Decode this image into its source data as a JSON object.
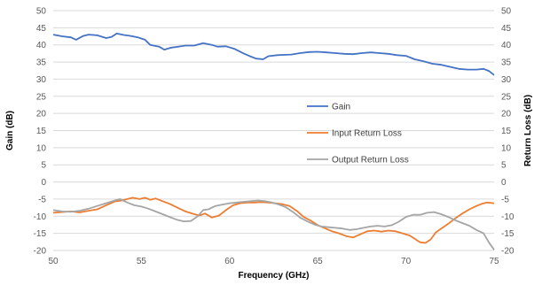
{
  "chart_data": {
    "type": "line",
    "title": "",
    "xlabel": "Frequency (GHz)",
    "ylabel": "Gain (dB)",
    "y2label": "Return Loss (dB)",
    "xlim": [
      50,
      75
    ],
    "ylim": [
      -20,
      50
    ],
    "y2lim": [
      -20,
      50
    ],
    "grid": "horizontal",
    "legend": "center-right",
    "x_ticks": [
      "50",
      "55",
      "60",
      "65",
      "70",
      "75"
    ],
    "y_ticks": [
      "50",
      "45",
      "40",
      "35",
      "30",
      "25",
      "20",
      "15",
      "10",
      "5",
      "0",
      "-5",
      "-10",
      "-15",
      "-20"
    ],
    "y2_ticks": [
      "50",
      "45",
      "40",
      "35",
      "30",
      "25",
      "20",
      "15",
      "10",
      "5",
      "0",
      "-5",
      "-10",
      "-15",
      "-20"
    ],
    "series": [
      {
        "name": "Gain",
        "color": "#4472C4",
        "axis": "left",
        "points": [
          [
            50,
            43.0
          ],
          [
            50.5,
            42.5
          ],
          [
            51,
            42.2
          ],
          [
            51.3,
            41.5
          ],
          [
            51.7,
            42.6
          ],
          [
            52,
            43.0
          ],
          [
            52.5,
            42.8
          ],
          [
            53,
            42.0
          ],
          [
            53.3,
            42.3
          ],
          [
            53.6,
            43.3
          ],
          [
            54,
            42.9
          ],
          [
            54.4,
            42.6
          ],
          [
            54.8,
            42.2
          ],
          [
            55.2,
            41.5
          ],
          [
            55.5,
            40.0
          ],
          [
            56,
            39.5
          ],
          [
            56.3,
            38.6
          ],
          [
            56.7,
            39.2
          ],
          [
            57,
            39.4
          ],
          [
            57.5,
            39.8
          ],
          [
            58,
            39.8
          ],
          [
            58.5,
            40.5
          ],
          [
            59,
            40.0
          ],
          [
            59.3,
            39.5
          ],
          [
            59.8,
            39.6
          ],
          [
            60.3,
            38.8
          ],
          [
            60.8,
            37.5
          ],
          [
            61.2,
            36.6
          ],
          [
            61.5,
            36.0
          ],
          [
            61.9,
            35.8
          ],
          [
            62.2,
            36.7
          ],
          [
            62.7,
            37.0
          ],
          [
            63.2,
            37.1
          ],
          [
            63.5,
            37.2
          ],
          [
            64,
            37.6
          ],
          [
            64.5,
            37.9
          ],
          [
            65,
            38.0
          ],
          [
            65.5,
            37.8
          ],
          [
            66,
            37.6
          ],
          [
            66.5,
            37.4
          ],
          [
            67,
            37.3
          ],
          [
            67.5,
            37.6
          ],
          [
            68,
            37.8
          ],
          [
            68.5,
            37.6
          ],
          [
            69,
            37.4
          ],
          [
            69.5,
            37.0
          ],
          [
            70,
            36.8
          ],
          [
            70.5,
            35.8
          ],
          [
            71,
            35.2
          ],
          [
            71.5,
            34.5
          ],
          [
            72,
            34.2
          ],
          [
            72.5,
            33.6
          ],
          [
            73,
            33.0
          ],
          [
            73.5,
            32.8
          ],
          [
            74,
            32.8
          ],
          [
            74.4,
            33.0
          ],
          [
            74.7,
            32.4
          ],
          [
            75,
            31.2
          ]
        ]
      },
      {
        "name": "Input Return Loss",
        "color": "#ED7D31",
        "axis": "right",
        "points": [
          [
            50,
            -9.0
          ],
          [
            50.5,
            -8.8
          ],
          [
            51,
            -8.6
          ],
          [
            51.5,
            -8.9
          ],
          [
            52,
            -8.4
          ],
          [
            52.5,
            -8.0
          ],
          [
            53,
            -6.8
          ],
          [
            53.5,
            -5.7
          ],
          [
            53.8,
            -5.5
          ],
          [
            54.2,
            -5.0
          ],
          [
            54.5,
            -4.6
          ],
          [
            54.9,
            -5.0
          ],
          [
            55.2,
            -4.6
          ],
          [
            55.5,
            -5.2
          ],
          [
            55.8,
            -4.8
          ],
          [
            56.2,
            -5.6
          ],
          [
            56.6,
            -6.4
          ],
          [
            57,
            -7.4
          ],
          [
            57.5,
            -8.6
          ],
          [
            58,
            -9.4
          ],
          [
            58.3,
            -9.8
          ],
          [
            58.6,
            -9.2
          ],
          [
            59,
            -10.4
          ],
          [
            59.4,
            -9.8
          ],
          [
            59.8,
            -8.2
          ],
          [
            60.2,
            -6.8
          ],
          [
            60.6,
            -6.2
          ],
          [
            61,
            -6.0
          ],
          [
            61.4,
            -6.0
          ],
          [
            61.8,
            -5.9
          ],
          [
            62.2,
            -6.0
          ],
          [
            62.6,
            -6.2
          ],
          [
            63,
            -6.5
          ],
          [
            63.4,
            -7.0
          ],
          [
            63.8,
            -8.4
          ],
          [
            64.2,
            -10.2
          ],
          [
            64.6,
            -11.3
          ],
          [
            65,
            -12.6
          ],
          [
            65.4,
            -13.5
          ],
          [
            65.8,
            -14.4
          ],
          [
            66.2,
            -15.0
          ],
          [
            66.6,
            -15.8
          ],
          [
            67,
            -16.2
          ],
          [
            67.4,
            -15.3
          ],
          [
            67.8,
            -14.4
          ],
          [
            68.2,
            -14.2
          ],
          [
            68.6,
            -14.5
          ],
          [
            69,
            -14.2
          ],
          [
            69.4,
            -14.4
          ],
          [
            69.8,
            -15.0
          ],
          [
            70.2,
            -15.6
          ],
          [
            70.5,
            -16.6
          ],
          [
            70.8,
            -17.6
          ],
          [
            71.1,
            -17.8
          ],
          [
            71.4,
            -16.8
          ],
          [
            71.7,
            -14.7
          ],
          [
            72,
            -13.6
          ],
          [
            72.4,
            -12.2
          ],
          [
            72.8,
            -10.6
          ],
          [
            73.2,
            -9.2
          ],
          [
            73.6,
            -8.0
          ],
          [
            74,
            -7.0
          ],
          [
            74.3,
            -6.4
          ],
          [
            74.6,
            -6.0
          ],
          [
            75,
            -6.2
          ]
        ]
      },
      {
        "name": "Output Return Loss",
        "color": "#A5A5A5",
        "axis": "right",
        "points": [
          [
            50,
            -8.2
          ],
          [
            50.5,
            -8.6
          ],
          [
            51,
            -8.7
          ],
          [
            51.5,
            -8.4
          ],
          [
            52,
            -7.8
          ],
          [
            52.5,
            -7.0
          ],
          [
            53,
            -6.2
          ],
          [
            53.5,
            -5.4
          ],
          [
            53.8,
            -5.0
          ],
          [
            54.2,
            -6.0
          ],
          [
            54.6,
            -6.8
          ],
          [
            55,
            -7.2
          ],
          [
            55.4,
            -7.8
          ],
          [
            55.8,
            -8.6
          ],
          [
            56.2,
            -9.4
          ],
          [
            56.6,
            -10.2
          ],
          [
            57,
            -11.0
          ],
          [
            57.4,
            -11.5
          ],
          [
            57.8,
            -11.4
          ],
          [
            58.2,
            -10.0
          ],
          [
            58.5,
            -8.2
          ],
          [
            58.8,
            -8.0
          ],
          [
            59.2,
            -7.0
          ],
          [
            59.6,
            -6.6
          ],
          [
            60,
            -6.2
          ],
          [
            60.4,
            -6.0
          ],
          [
            60.8,
            -5.8
          ],
          [
            61.2,
            -5.6
          ],
          [
            61.6,
            -5.4
          ],
          [
            62,
            -5.6
          ],
          [
            62.4,
            -6.0
          ],
          [
            62.8,
            -6.6
          ],
          [
            63.2,
            -7.4
          ],
          [
            63.6,
            -8.8
          ],
          [
            64,
            -10.4
          ],
          [
            64.4,
            -11.5
          ],
          [
            64.8,
            -12.4
          ],
          [
            65.2,
            -13.0
          ],
          [
            65.6,
            -13.2
          ],
          [
            66,
            -13.4
          ],
          [
            66.4,
            -13.6
          ],
          [
            66.8,
            -14.0
          ],
          [
            67.2,
            -13.8
          ],
          [
            67.6,
            -13.4
          ],
          [
            68,
            -13.0
          ],
          [
            68.4,
            -12.8
          ],
          [
            68.8,
            -13.0
          ],
          [
            69.2,
            -12.6
          ],
          [
            69.6,
            -11.6
          ],
          [
            70,
            -10.2
          ],
          [
            70.4,
            -9.6
          ],
          [
            70.8,
            -9.6
          ],
          [
            71.2,
            -9.0
          ],
          [
            71.6,
            -8.8
          ],
          [
            72,
            -9.4
          ],
          [
            72.4,
            -10.2
          ],
          [
            72.8,
            -11.2
          ],
          [
            73.2,
            -12.0
          ],
          [
            73.6,
            -12.8
          ],
          [
            74,
            -14.0
          ],
          [
            74.4,
            -15.0
          ],
          [
            74.7,
            -17.6
          ],
          [
            75,
            -19.8
          ]
        ]
      }
    ]
  }
}
